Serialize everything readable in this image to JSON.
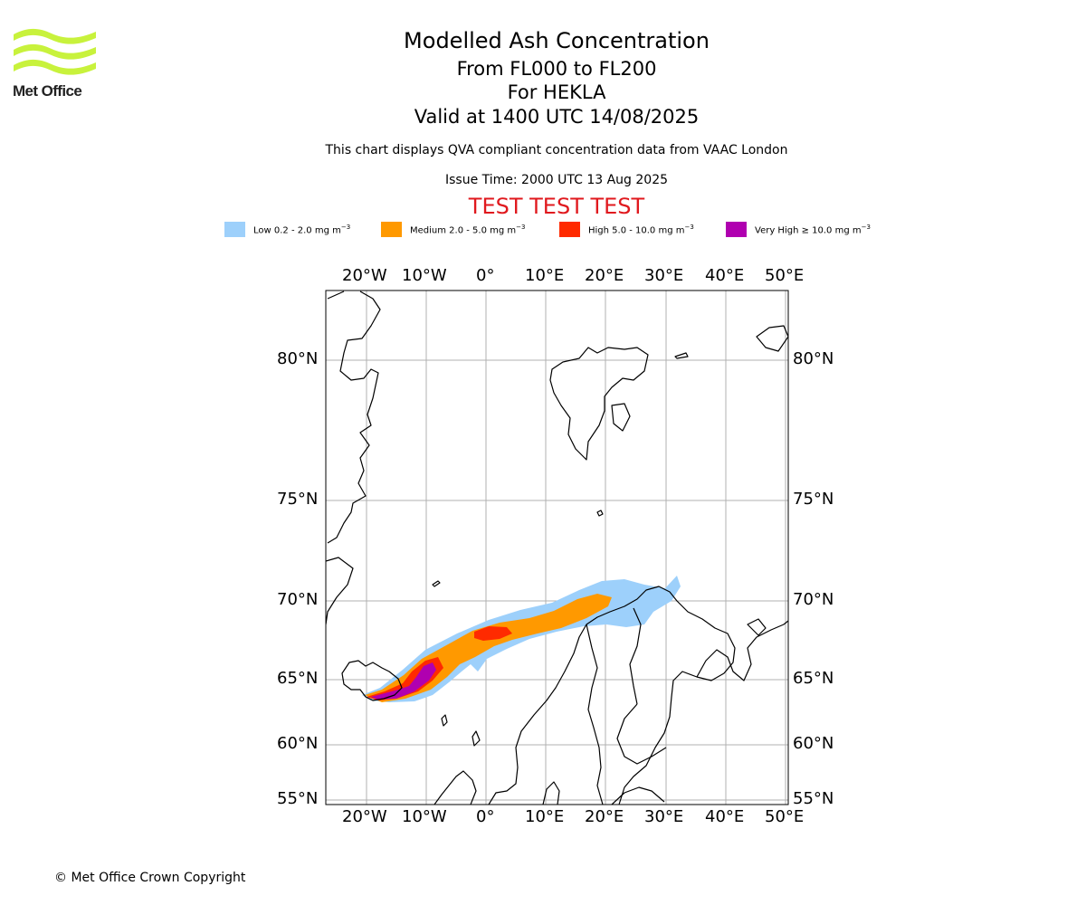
{
  "logo": {
    "text": "Met Office",
    "colors": {
      "waves": "#c8f23c",
      "text": "#222222"
    }
  },
  "header": {
    "title": "Modelled Ash Concentration",
    "levels": "From FL000 to FL200",
    "volcano": "For HEKLA",
    "valid": "Valid at 1400 UTC 14/08/2025",
    "note": "This chart displays QVA compliant concentration data from VAAC London",
    "issue": "Issue Time: 2000 UTC 13 Aug 2025",
    "test_banner": "TEST TEST TEST"
  },
  "legend": {
    "unit_base": "mg m",
    "unit_exp": "−3",
    "items": [
      {
        "label": "Low 0.2 - 2.0 ",
        "color": "#9dd0fb"
      },
      {
        "label": "Medium 2.0 - 5.0 ",
        "color": "#ff9900"
      },
      {
        "label": "High 5.0 - 10.0 ",
        "color": "#ff2a00"
      },
      {
        "label": "Very High  ≥  10.0 ",
        "color": "#b000b0"
      }
    ]
  },
  "map": {
    "projection": "north-polar stereographic",
    "lon_ticks": [
      "20°W",
      "10°W",
      "0°",
      "10°E",
      "20°E",
      "30°E",
      "40°E",
      "50°E"
    ],
    "lat_ticks": [
      "80°N",
      "75°N",
      "70°N",
      "65°N",
      "60°N",
      "55°N"
    ],
    "gridline_color": "#b0b0b0",
    "coastline_color": "#000000",
    "ash_plume": {
      "source": "HEKLA",
      "direction": "north-east from Iceland towards northern Norway",
      "levels_present": [
        "Low",
        "Medium",
        "High",
        "Very High"
      ]
    }
  },
  "footer": {
    "copyright": "© Met Office Crown Copyright"
  }
}
